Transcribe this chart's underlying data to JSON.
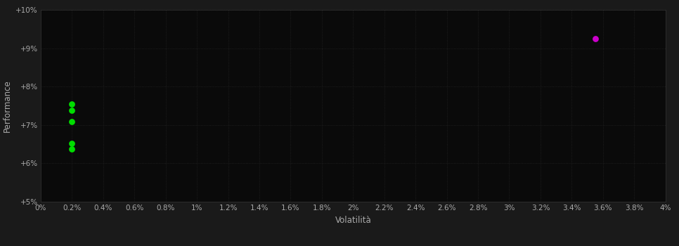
{
  "green_points": [
    [
      0.002,
      0.0755
    ],
    [
      0.002,
      0.0738
    ],
    [
      0.002,
      0.0708
    ],
    [
      0.002,
      0.0652
    ],
    [
      0.002,
      0.0638
    ]
  ],
  "magenta_points": [
    [
      0.0355,
      0.0925
    ]
  ],
  "green_color": "#00dd00",
  "magenta_color": "#cc00cc",
  "background_color": "#1a1a1a",
  "plot_bg_color": "#0a0a0a",
  "grid_color": "#2a2a2a",
  "text_color": "#aaaaaa",
  "xlabel": "Volatilità",
  "ylabel": "Performance",
  "xlim": [
    0.0,
    0.04
  ],
  "ylim": [
    0.05,
    0.1
  ],
  "x_ticks": [
    0.0,
    0.002,
    0.004,
    0.006,
    0.008,
    0.01,
    0.012,
    0.014,
    0.016,
    0.018,
    0.02,
    0.022,
    0.024,
    0.026,
    0.028,
    0.03,
    0.032,
    0.034,
    0.036,
    0.038,
    0.04
  ],
  "y_ticks": [
    0.05,
    0.06,
    0.07,
    0.08,
    0.09,
    0.1
  ],
  "marker_size": 40
}
